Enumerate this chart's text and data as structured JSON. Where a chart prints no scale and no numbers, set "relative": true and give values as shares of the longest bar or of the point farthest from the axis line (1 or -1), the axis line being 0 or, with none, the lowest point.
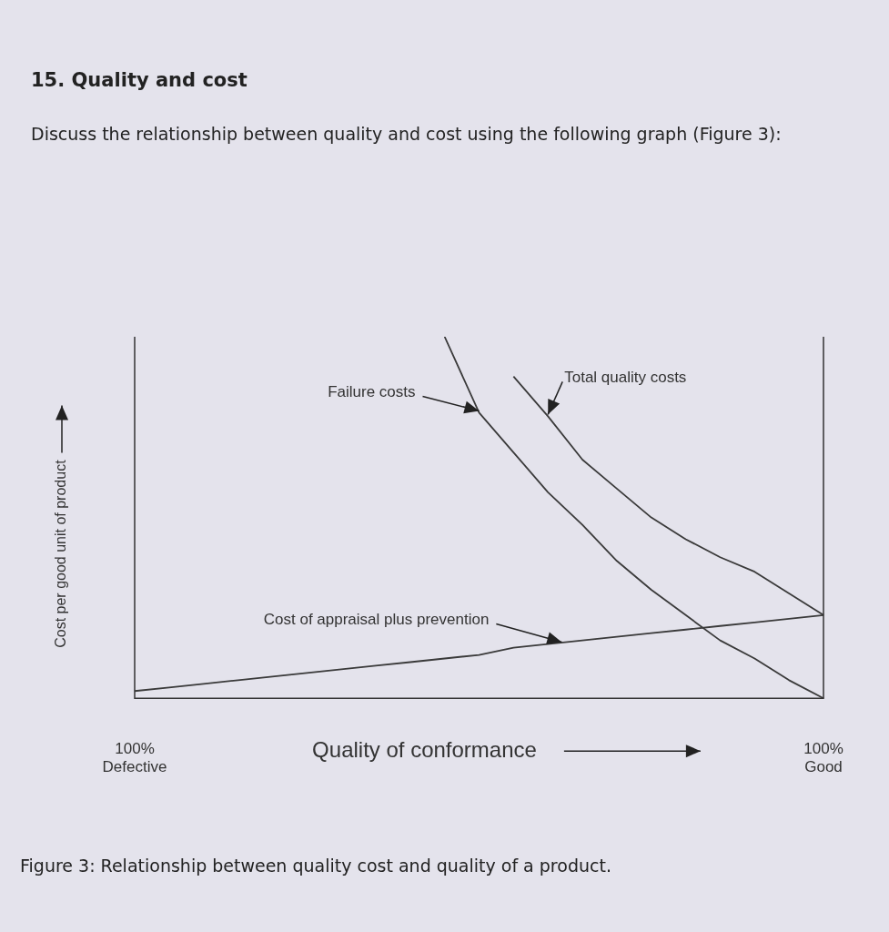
{
  "chart_data": {
    "type": "line",
    "title": "15. Quality and cost",
    "subtitle": "Discuss the relationship between quality and cost using the following graph (Figure 3):",
    "xlabel": "Quality of conformance",
    "ylabel": "Cost per good unit of product",
    "relative": true,
    "categories": [
      "100%\nDefective",
      null,
      null,
      null,
      null,
      null,
      null,
      null,
      null,
      null,
      null,
      null,
      null,
      null,
      null,
      null,
      null,
      null,
      null,
      null,
      "100%\nGood"
    ],
    "marker": "none",
    "grid": false,
    "legend": false,
    "series": [
      {
        "name": "Failure costs",
        "color": "#3a3a3a",
        "values": [
          null,
          null,
          null,
          null,
          null,
          null,
          null,
          null,
          null,
          1.0,
          0.79,
          0.68,
          0.57,
          0.48,
          0.38,
          0.3,
          0.23,
          0.16,
          0.11,
          0.05,
          0
        ]
      },
      {
        "name": "Total quality costs",
        "color": "#3a3a3a",
        "values": [
          null,
          null,
          null,
          null,
          null,
          null,
          null,
          null,
          null,
          null,
          null,
          0.89,
          0.78,
          0.66,
          0.58,
          0.5,
          0.44,
          0.39,
          0.35,
          0.29,
          0.23
        ]
      },
      {
        "name": "Cost of appraisal plus prevention",
        "color": "#3a3a3a",
        "values": [
          0.02,
          0.03,
          0.04,
          0.05,
          0.06,
          0.07,
          0.08,
          0.09,
          0.1,
          0.11,
          0.12,
          0.14,
          0.15,
          0.16,
          0.17,
          0.18,
          0.19,
          0.2,
          0.21,
          0.22,
          0.23
        ]
      }
    ],
    "annotations": [
      "Figure 3: Relationship between quality cost and quality of a product."
    ]
  }
}
